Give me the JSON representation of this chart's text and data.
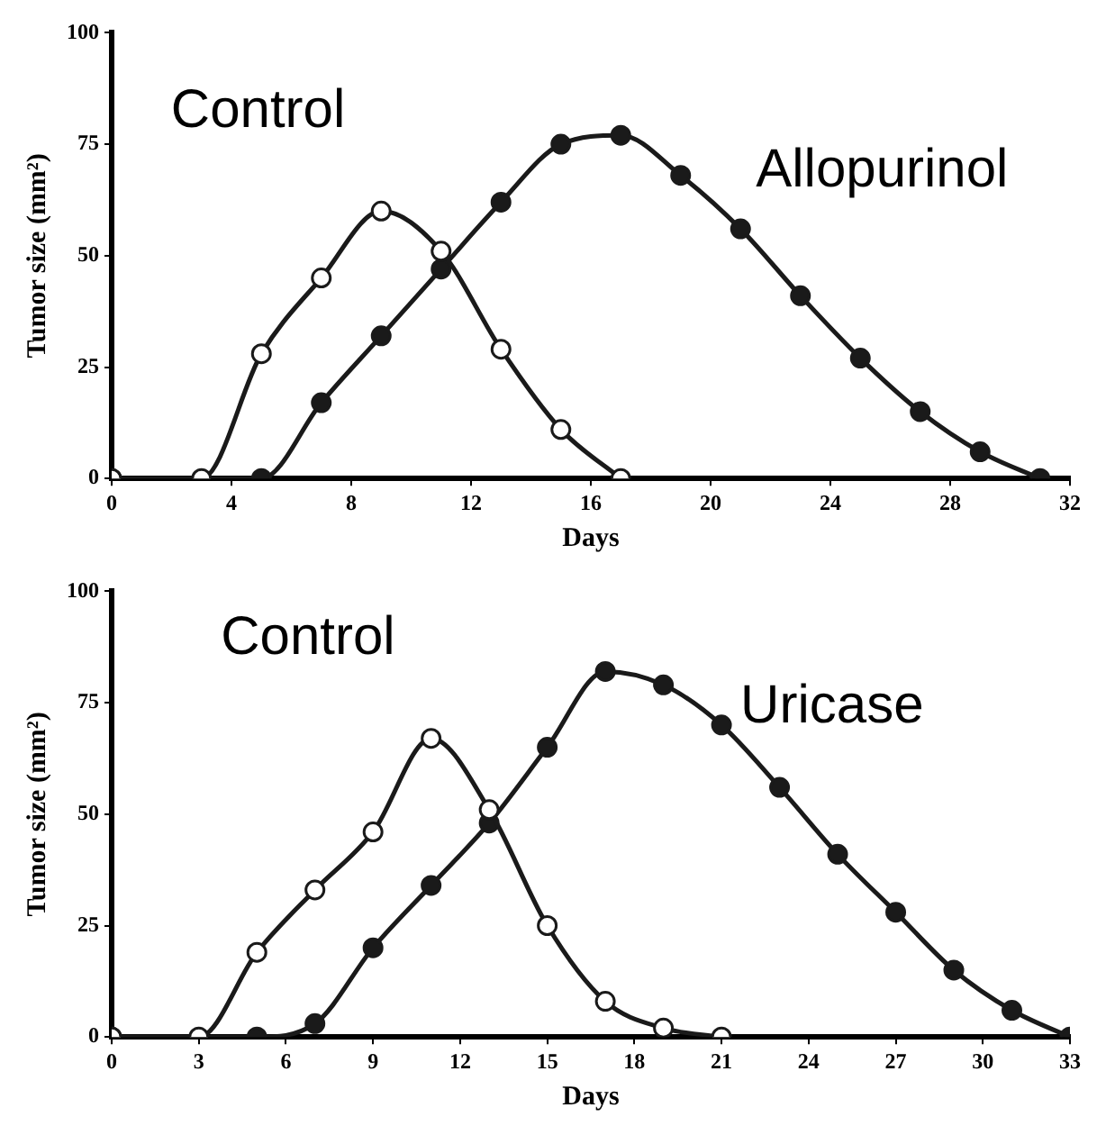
{
  "chart_data": [
    {
      "type": "line",
      "xlabel": "Days",
      "ylabel": "Tumor size (mm²)",
      "xlim": [
        0,
        32
      ],
      "xticks": [
        0,
        4,
        8,
        12,
        16,
        20,
        24,
        28,
        32
      ],
      "ylim": [
        0,
        100
      ],
      "yticks": [
        0,
        25,
        50,
        75,
        100
      ],
      "grid": false,
      "legend": false,
      "marker": "circle",
      "line_style": "solid",
      "series": [
        {
          "name": "Control",
          "color": "#1a1a1a",
          "x": [
            0,
            3,
            5,
            7,
            9,
            11,
            13,
            15,
            17
          ],
          "values": [
            0,
            0,
            28,
            45,
            60,
            51,
            29,
            11,
            0
          ]
        },
        {
          "name": "Allopurinol",
          "color": "#1a1a1a",
          "x": [
            0,
            5,
            7,
            9,
            11,
            13,
            15,
            17,
            19,
            21,
            23,
            25,
            27,
            29,
            31
          ],
          "values": [
            0,
            0,
            17,
            32,
            47,
            62,
            75,
            77,
            68,
            56,
            41,
            27,
            15,
            6,
            0
          ]
        }
      ]
    },
    {
      "type": "line",
      "xlabel": "Days",
      "ylabel": "Tumor size (mm²)",
      "xlim": [
        0,
        33
      ],
      "xticks": [
        0,
        3,
        6,
        9,
        12,
        15,
        18,
        21,
        24,
        27,
        30,
        33
      ],
      "ylim": [
        0,
        100
      ],
      "yticks": [
        0,
        25,
        50,
        75,
        100
      ],
      "grid": false,
      "legend": false,
      "marker": "circle",
      "line_style": "solid",
      "series": [
        {
          "name": "Control",
          "color": "#1a1a1a",
          "x": [
            0,
            3,
            5,
            7,
            9,
            11,
            13,
            15,
            17,
            19,
            21
          ],
          "values": [
            0,
            0,
            19,
            33,
            46,
            67,
            51,
            25,
            8,
            2,
            0
          ]
        },
        {
          "name": "Uricase",
          "color": "#1a1a1a",
          "x": [
            0,
            5,
            7,
            9,
            11,
            13,
            15,
            17,
            19,
            21,
            23,
            25,
            27,
            29,
            31,
            33
          ],
          "values": [
            0,
            0,
            3,
            20,
            34,
            48,
            65,
            82,
            79,
            70,
            56,
            41,
            28,
            15,
            6,
            0
          ]
        }
      ]
    }
  ]
}
